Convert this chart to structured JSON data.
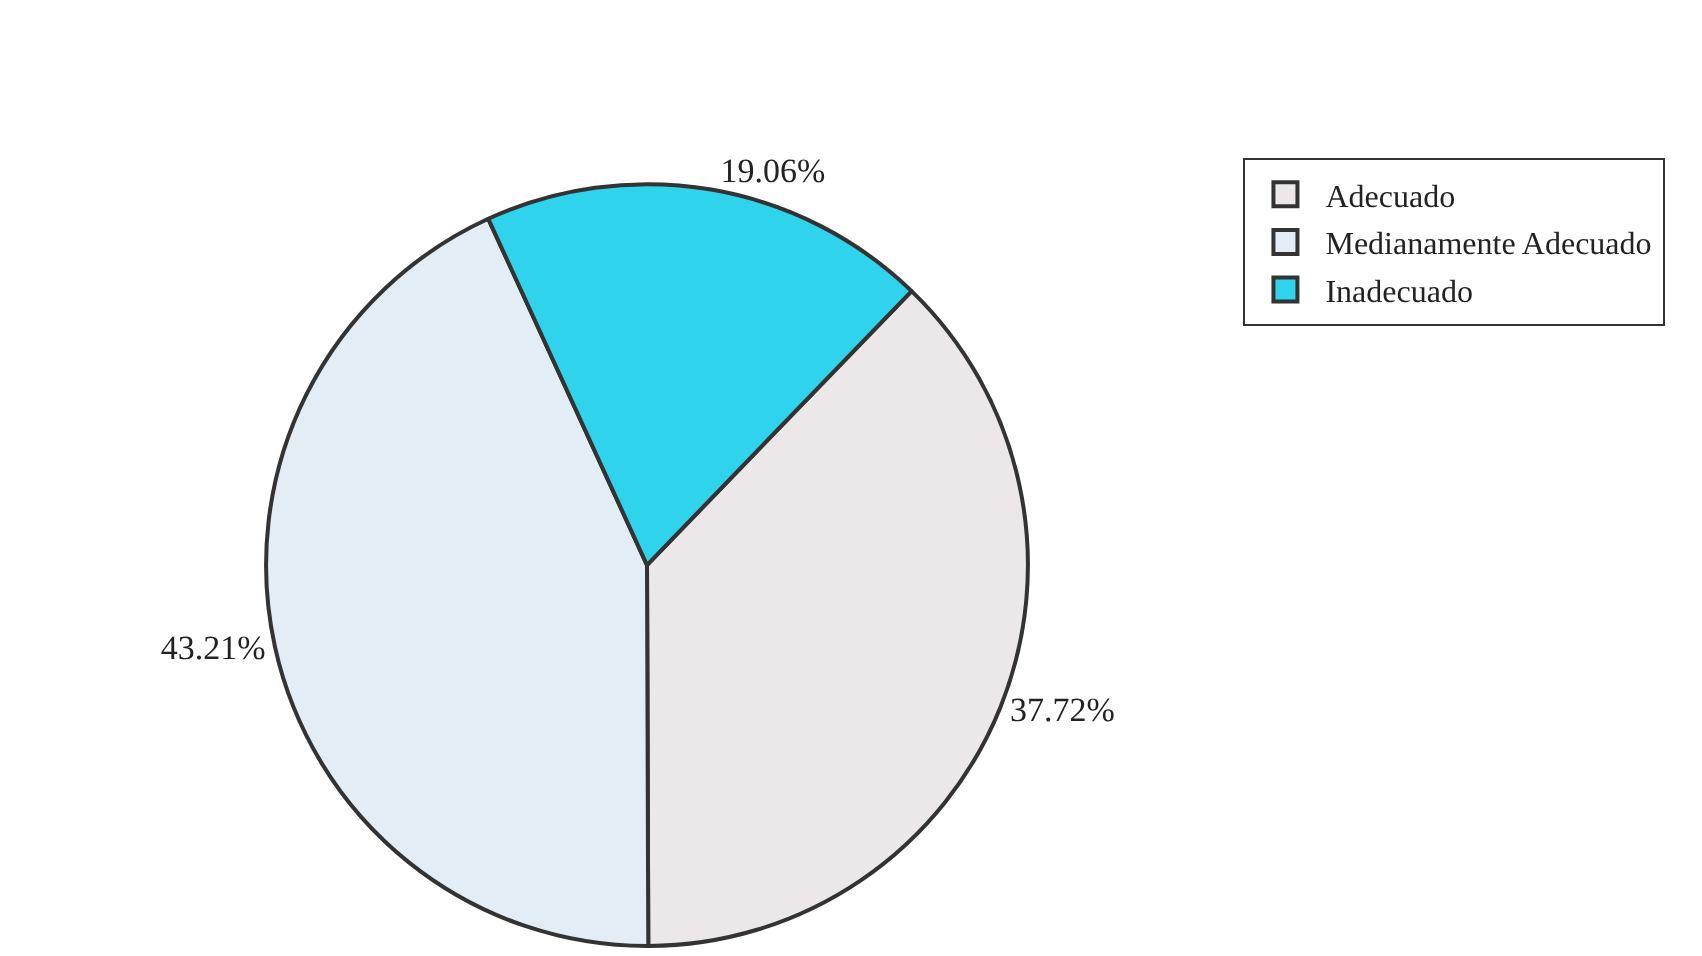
{
  "chart_data": {
    "type": "pie",
    "categories": [
      "Adecuado",
      "Medianamente Adecuado",
      "Inadecuado"
    ],
    "values": [
      37.72,
      43.21,
      19.06
    ],
    "value_labels": [
      "37.72%",
      "43.21%",
      "19.06%"
    ],
    "colors": [
      "#ece7e9",
      "#e3edf5",
      "#2fd3ec"
    ],
    "legend": "top right"
  }
}
